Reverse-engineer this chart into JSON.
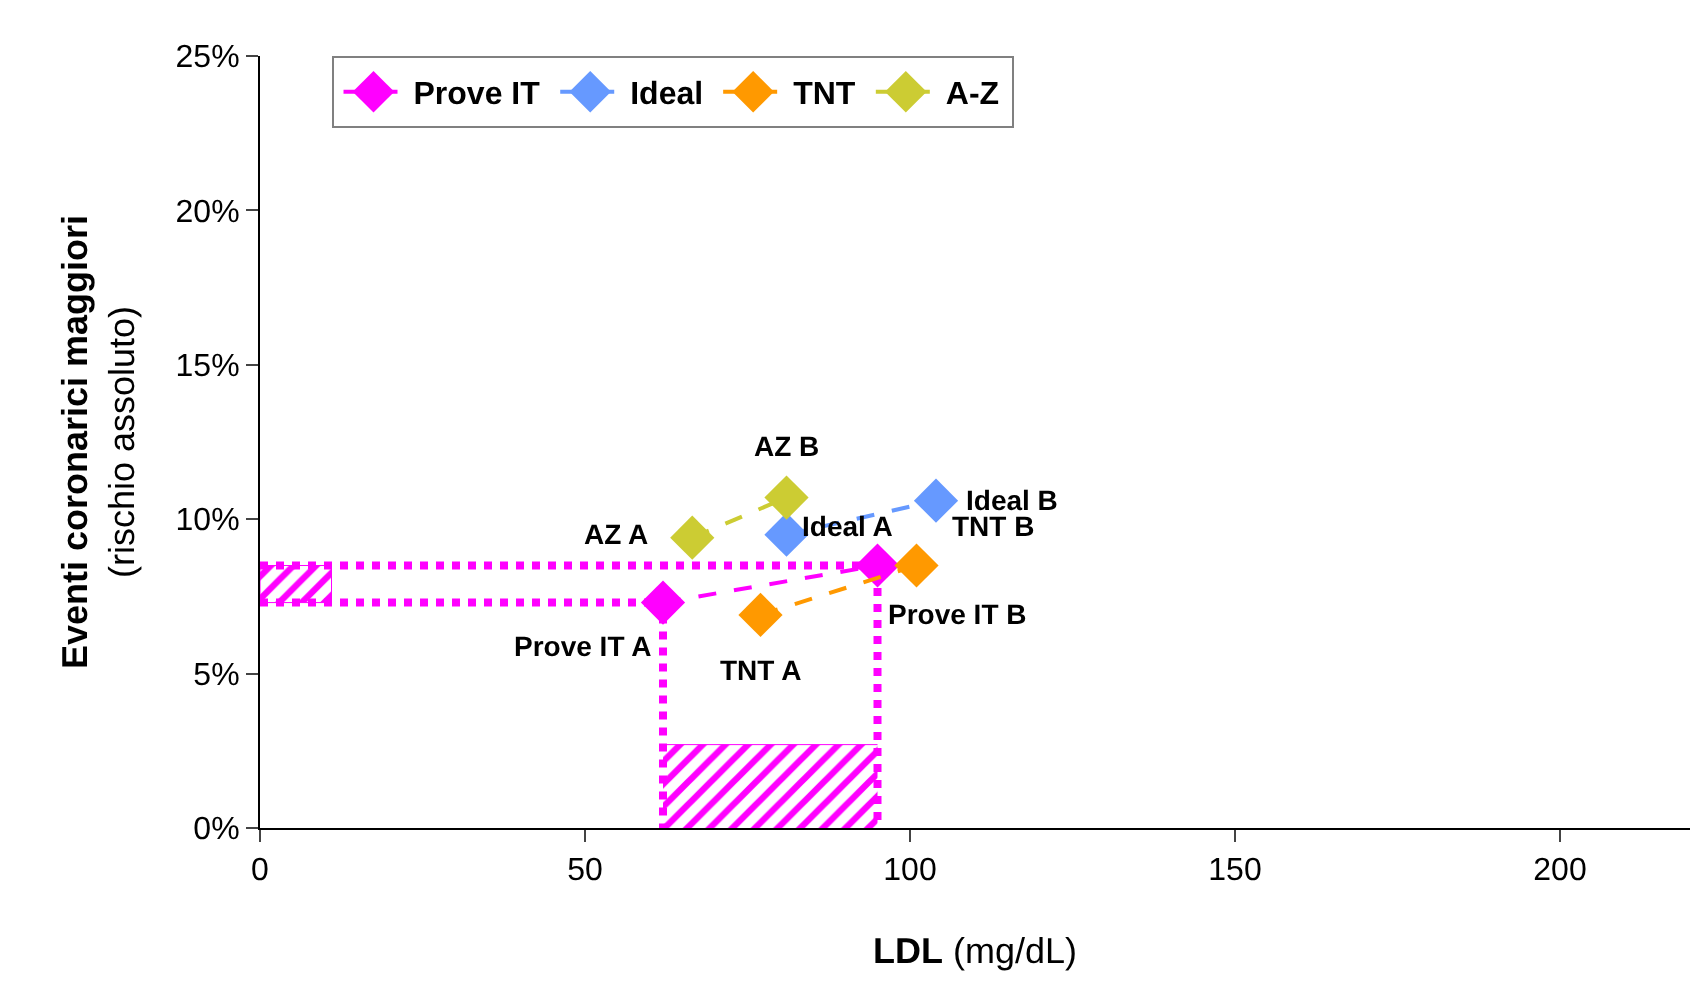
{
  "chart_data": {
    "type": "scatter",
    "xlabel": "LDL (mg/dL)",
    "ylabel": "Eventi coronarici maggiori\n(rischio assoluto)",
    "xlim": [
      0,
      220
    ],
    "xticks": [
      0,
      50,
      100,
      150,
      200
    ],
    "ylim": [
      0,
      25
    ],
    "yticks": [
      {
        "value": 0,
        "label": "0%"
      },
      {
        "value": 5,
        "label": "5%"
      },
      {
        "value": 10,
        "label": "10%"
      },
      {
        "value": 15,
        "label": "15%"
      },
      {
        "value": 20,
        "label": "20%"
      },
      {
        "value": 25,
        "label": "25%"
      }
    ],
    "grid": false,
    "legend": "top",
    "marker": "diamond",
    "line_style": "dashed",
    "series": [
      {
        "type": "area",
        "color": "#ff00ff",
        "marker": "none",
        "x": [
          0,
          11,
          11,
          0,
          0
        ],
        "values": [
          8.5,
          8.5,
          7.3,
          7.3,
          8.5
        ]
      },
      {
        "type": "area",
        "color": "#ff00ff",
        "marker": "none",
        "x": [
          62,
          95
        ],
        "values": [
          2.7,
          2.7
        ]
      },
      {
        "type": "line",
        "color": "#ff00ff",
        "marker": "none",
        "line_style": "dotted",
        "x": [
          0,
          62,
          62
        ],
        "values": [
          7.3,
          7.3,
          0
        ]
      },
      {
        "type": "line",
        "color": "#ff00ff",
        "marker": "none",
        "line_style": "dotted",
        "x": [
          0,
          95,
          95
        ],
        "values": [
          8.5,
          8.5,
          0
        ]
      },
      {
        "name": "Prove IT",
        "color": "#ff00ff",
        "x": [
          62,
          95
        ],
        "values": [
          7.3,
          8.5
        ]
      },
      {
        "name": "Ideal",
        "color": "#6699ff",
        "x": [
          81,
          104
        ],
        "values": [
          9.5,
          10.6
        ]
      },
      {
        "name": "TNT",
        "color": "#ff9900",
        "x": [
          77,
          101
        ],
        "values": [
          6.9,
          8.5
        ]
      },
      {
        "name": "A-Z",
        "color": "#cccc33",
        "x": [
          66.5,
          81
        ],
        "values": [
          9.4,
          10.7
        ]
      }
    ],
    "annotations": [
      {
        "text": "Prove IT A",
        "x": 62,
        "y": 7.3
      },
      {
        "text": "Prove IT B",
        "x": 95,
        "y": 8.5
      },
      {
        "text": "Ideal A",
        "x": 81,
        "y": 9.5
      },
      {
        "text": "Ideal B",
        "x": 104,
        "y": 10.6
      },
      {
        "text": "TNT A",
        "x": 77,
        "y": 6.9
      },
      {
        "text": "TNT B",
        "x": 101,
        "y": 8.5
      },
      {
        "text": "AZ A",
        "x": 66.5,
        "y": 9.4
      },
      {
        "text": "AZ B",
        "x": 81,
        "y": 10.7
      }
    ]
  }
}
